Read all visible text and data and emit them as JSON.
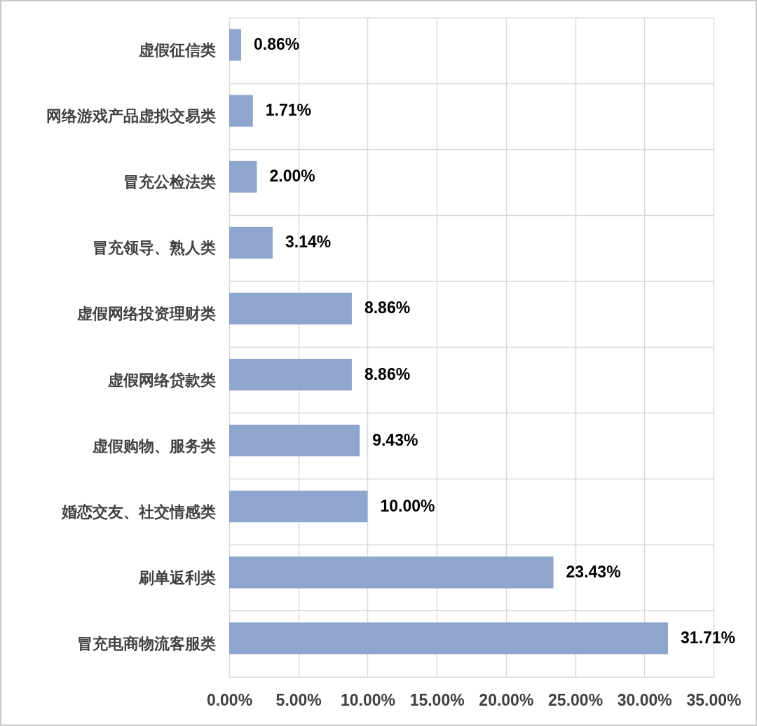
{
  "chart_data": {
    "type": "bar",
    "orientation": "horizontal",
    "categories": [
      "虚假征信类",
      "网络游戏产品虚拟交易类",
      "冒充公检法类",
      "冒充领导、熟人类",
      "虚假网络投资理财类",
      "虚假网络贷款类",
      "虚假购物、服务类",
      "婚恋交友、社交情感类",
      "刷单返利类",
      "冒充电商物流客服类"
    ],
    "values": [
      0.86,
      1.71,
      2.0,
      3.14,
      8.86,
      8.86,
      9.43,
      10.0,
      23.43,
      31.71
    ],
    "value_labels": [
      "0.86%",
      "1.71%",
      "2.00%",
      "3.14%",
      "8.86%",
      "8.86%",
      "9.43%",
      "10.00%",
      "23.43%",
      "31.71%"
    ],
    "color": "#8ea5ce",
    "xlim": [
      0,
      35
    ],
    "xticks": [
      {
        "value": 0,
        "label": "0.00%"
      },
      {
        "value": 5,
        "label": "5.00%"
      },
      {
        "value": 10,
        "label": "10.00%"
      },
      {
        "value": 15,
        "label": "15.00%"
      },
      {
        "value": 20,
        "label": "20.00%"
      },
      {
        "value": 25,
        "label": "25.00%"
      },
      {
        "value": 30,
        "label": "30.00%"
      },
      {
        "value": 35,
        "label": "35.00%"
      }
    ],
    "grid": true
  }
}
